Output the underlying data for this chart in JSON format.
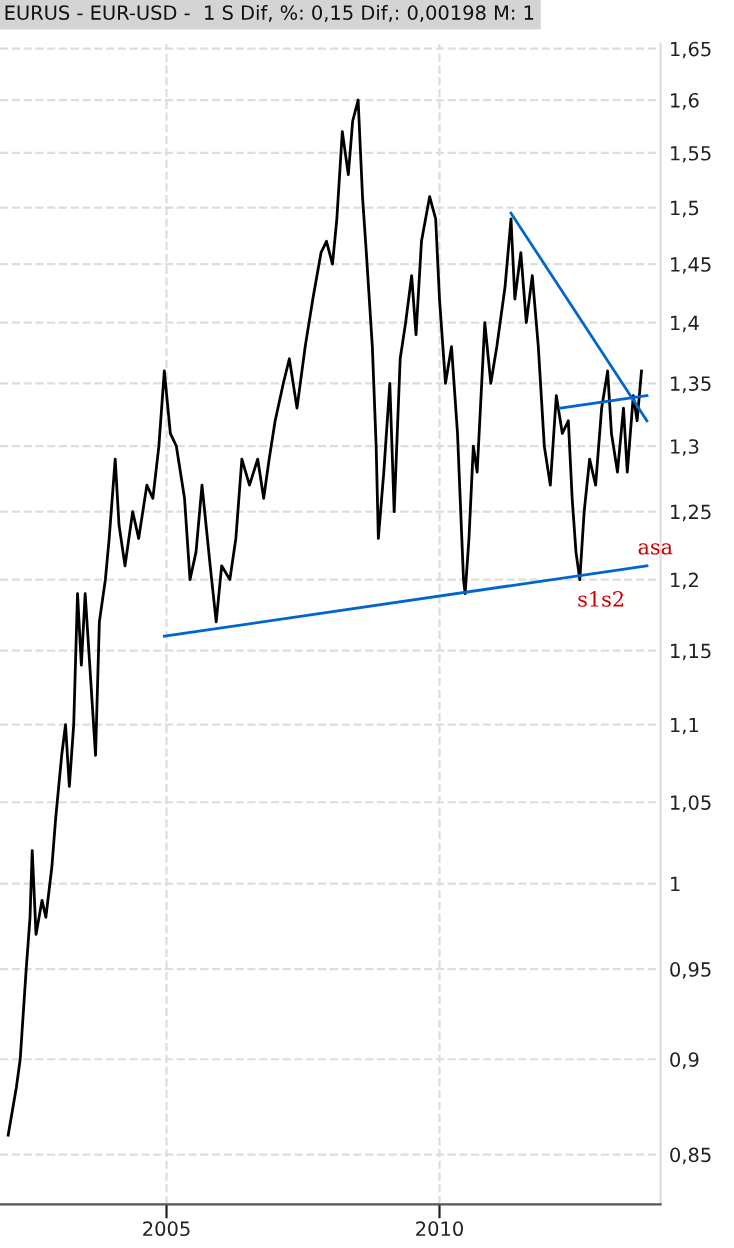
{
  "chart_data": {
    "type": "line",
    "title": "EURUS - EUR-USD -  1 S Dif, %: 0,15 Dif,: 0,00198 M: 1",
    "log": "y",
    "grid": true,
    "line_style": "solid",
    "tick_labels": "xy",
    "xlim": [
      2001.95,
      2014.05
    ],
    "ylim": [
      0.825,
      1.655
    ],
    "xticks": [
      2005,
      2010
    ],
    "yticks": [
      {
        "value": 0.85,
        "label": "0,85"
      },
      {
        "value": 0.9,
        "label": "0,9"
      },
      {
        "value": 0.95,
        "label": "0,95"
      },
      {
        "value": 1,
        "label": "1"
      },
      {
        "value": 1.05,
        "label": "1,05"
      },
      {
        "value": 1.1,
        "label": "1,1"
      },
      {
        "value": 1.15,
        "label": "1,15"
      },
      {
        "value": 1.2,
        "label": "1,2"
      },
      {
        "value": 1.25,
        "label": "1,25"
      },
      {
        "value": 1.3,
        "label": "1,3"
      },
      {
        "value": 1.35,
        "label": "1,35"
      },
      {
        "value": 1.4,
        "label": "1,4"
      },
      {
        "value": 1.45,
        "label": "1,45"
      },
      {
        "value": 1.5,
        "label": "1,5"
      },
      {
        "value": 1.55,
        "label": "1,55"
      },
      {
        "value": 1.6,
        "label": "1,6"
      },
      {
        "value": 1.65,
        "label": "1,65"
      }
    ],
    "series": [
      {
        "color": "#000000",
        "x": [
          2002.1,
          2002.25,
          2002.32,
          2002.43,
          2002.5,
          2002.54,
          2002.61,
          2002.72,
          2002.79,
          2002.9,
          2002.97,
          2003.08,
          2003.15,
          2003.22,
          2003.3,
          2003.37,
          2003.44,
          2003.51,
          2003.7,
          2003.77,
          2003.88,
          2003.95,
          2004.06,
          2004.13,
          2004.24,
          2004.38,
          2004.49,
          2004.64,
          2004.75,
          2004.86,
          2004.96,
          2005.07,
          2005.18,
          2005.33,
          2005.43,
          2005.54,
          2005.65,
          2005.8,
          2005.91,
          2006.01,
          2006.16,
          2006.27,
          2006.38,
          2006.52,
          2006.67,
          2006.78,
          2006.88,
          2006.99,
          2007.14,
          2007.25,
          2007.39,
          2007.54,
          2007.68,
          2007.83,
          2007.93,
          2008.04,
          2008.12,
          2008.22,
          2008.33,
          2008.41,
          2008.51,
          2008.59,
          2008.66,
          2008.77,
          2008.84,
          2008.88,
          2008.98,
          2009.09,
          2009.17,
          2009.28,
          2009.38,
          2009.49,
          2009.57,
          2009.67,
          2009.82,
          2009.93,
          2010.0,
          2010.11,
          2010.22,
          2010.33,
          2010.44,
          2010.47,
          2010.54,
          2010.62,
          2010.69,
          2010.83,
          2010.94,
          2011.05,
          2011.2,
          2011.31,
          2011.38,
          2011.49,
          2011.59,
          2011.7,
          2011.81,
          2011.92,
          2012.03,
          2012.14,
          2012.25,
          2012.36,
          2012.43,
          2012.5,
          2012.57,
          2012.65,
          2012.75,
          2012.86,
          2012.97,
          2013.08,
          2013.15,
          2013.26,
          2013.37,
          2013.44,
          2013.55,
          2013.62,
          2013.7
        ],
        "values": [
          0.86,
          0.885,
          0.9,
          0.95,
          0.98,
          1.02,
          0.97,
          0.99,
          0.98,
          1.01,
          1.04,
          1.08,
          1.1,
          1.06,
          1.1,
          1.19,
          1.14,
          1.19,
          1.08,
          1.17,
          1.2,
          1.23,
          1.29,
          1.24,
          1.21,
          1.25,
          1.23,
          1.27,
          1.26,
          1.3,
          1.36,
          1.31,
          1.3,
          1.26,
          1.2,
          1.22,
          1.27,
          1.21,
          1.17,
          1.21,
          1.2,
          1.23,
          1.29,
          1.27,
          1.29,
          1.26,
          1.29,
          1.32,
          1.35,
          1.37,
          1.33,
          1.38,
          1.42,
          1.46,
          1.47,
          1.45,
          1.49,
          1.57,
          1.53,
          1.58,
          1.6,
          1.51,
          1.46,
          1.38,
          1.3,
          1.23,
          1.28,
          1.35,
          1.25,
          1.37,
          1.4,
          1.44,
          1.39,
          1.47,
          1.51,
          1.49,
          1.42,
          1.35,
          1.38,
          1.31,
          1.2,
          1.19,
          1.23,
          1.3,
          1.28,
          1.4,
          1.35,
          1.38,
          1.43,
          1.49,
          1.42,
          1.46,
          1.4,
          1.44,
          1.38,
          1.3,
          1.27,
          1.34,
          1.31,
          1.32,
          1.26,
          1.22,
          1.2,
          1.25,
          1.29,
          1.27,
          1.33,
          1.36,
          1.31,
          1.28,
          1.33,
          1.28,
          1.34,
          1.32,
          1.36
        ]
      },
      {
        "color": "#0066cc",
        "x": [
          2004.96,
          2013.8
        ],
        "values": [
          1.16,
          1.21
        ]
      },
      {
        "color": "#0066cc",
        "x": [
          2011.31,
          2013.8
        ],
        "values": [
          1.495,
          1.32
        ]
      },
      {
        "color": "#0066cc",
        "x": [
          2012.21,
          2013.8
        ],
        "values": [
          1.33,
          1.34
        ]
      }
    ],
    "annotations": [
      "asa",
      "s1s2"
    ]
  }
}
